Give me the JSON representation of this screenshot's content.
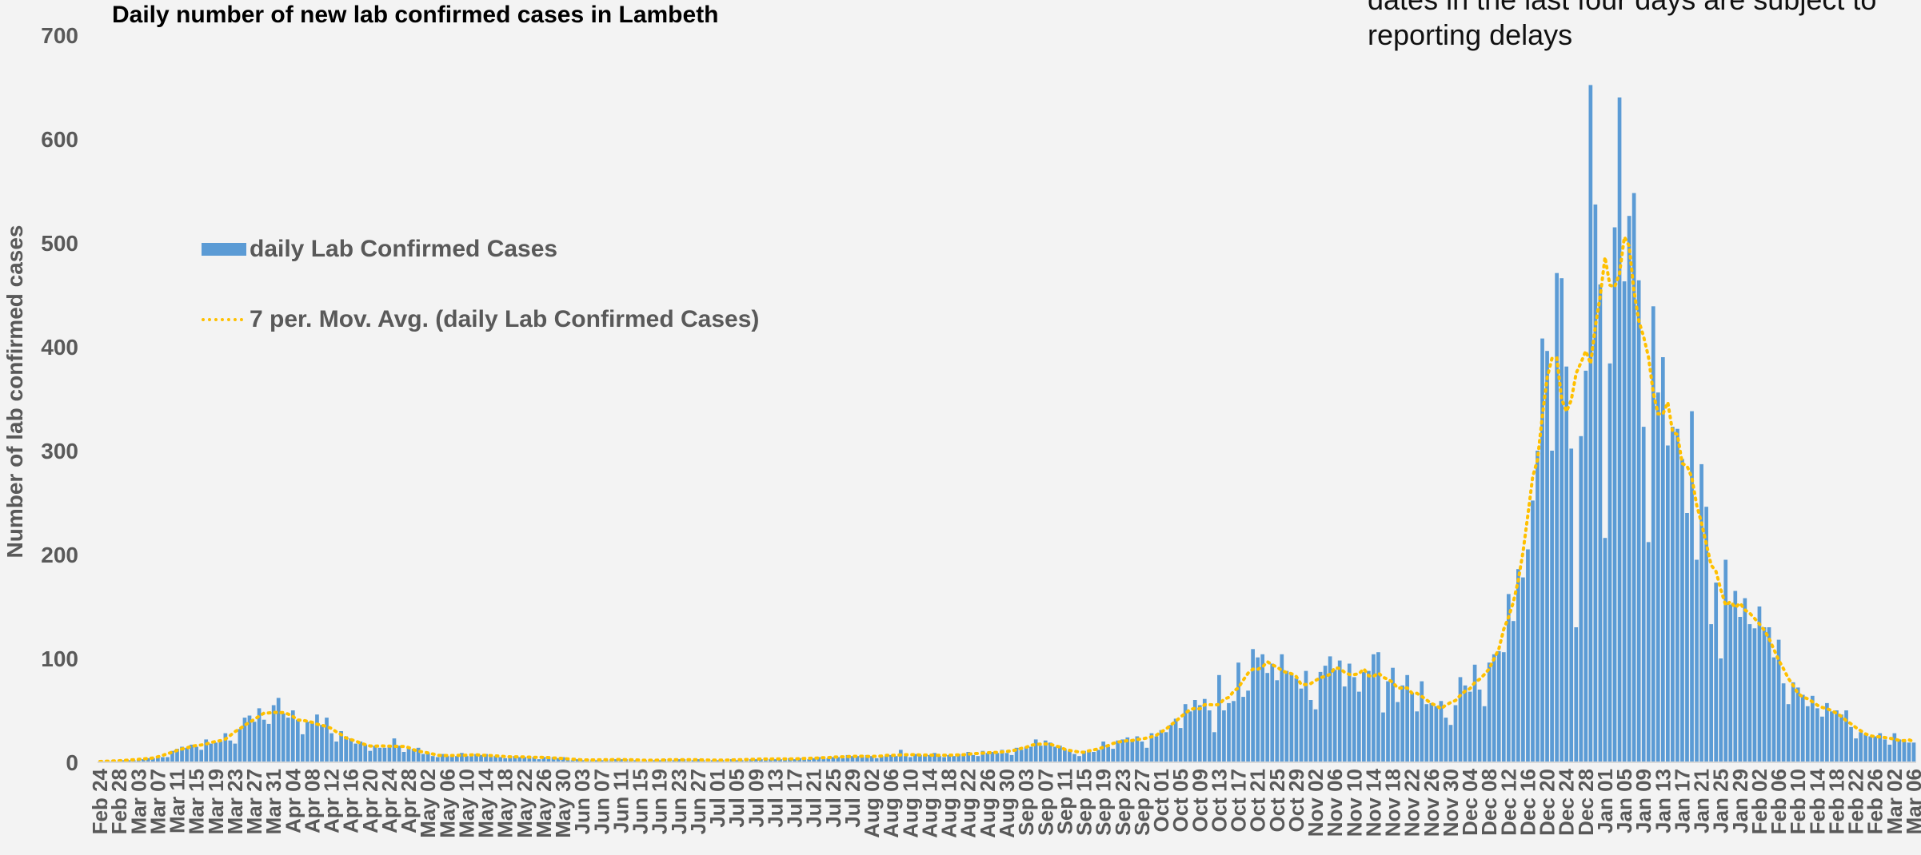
{
  "chart_data": {
    "type": "bar",
    "title": "Daily number of new lab confirmed cases in Lambeth",
    "note": "dates in the last four days are subject to reporting delays",
    "xlabel": "",
    "ylabel": "Number of lab confirmed cases",
    "ylim": [
      0,
      700
    ],
    "yticks": [
      0,
      100,
      200,
      300,
      400,
      500,
      600,
      700
    ],
    "grid": false,
    "legend_position": "upper-left",
    "start_date": "2020-02-24",
    "xtick_every_days": 4,
    "colors": {
      "bars": "#5b9bd5",
      "moving_average": "#ffc000",
      "axis_text": "#595959"
    },
    "series": [
      {
        "name": "daily Lab Confirmed Cases",
        "type": "bar",
        "anchors": [
          [
            "2020-02-24",
            0
          ],
          [
            "2020-03-01",
            2
          ],
          [
            "2020-03-08",
            5
          ],
          [
            "2020-03-12",
            11
          ],
          [
            "2020-03-16",
            13
          ],
          [
            "2020-03-20",
            22
          ],
          [
            "2020-03-24",
            29
          ],
          [
            "2020-03-28",
            36
          ],
          [
            "2020-04-01",
            45
          ],
          [
            "2020-04-05",
            40
          ],
          [
            "2020-04-09",
            34
          ],
          [
            "2020-04-13",
            24
          ],
          [
            "2020-04-17",
            18
          ],
          [
            "2020-04-21",
            15
          ],
          [
            "2020-04-25",
            14
          ],
          [
            "2020-04-29",
            11
          ],
          [
            "2020-05-03",
            7
          ],
          [
            "2020-05-10",
            6
          ],
          [
            "2020-05-18",
            6
          ],
          [
            "2020-05-25",
            4
          ],
          [
            "2020-06-05",
            2
          ],
          [
            "2020-06-20",
            2
          ],
          [
            "2020-07-01",
            2
          ],
          [
            "2020-07-15",
            3
          ],
          [
            "2020-07-25",
            4
          ],
          [
            "2020-08-01",
            6
          ],
          [
            "2020-08-08",
            5
          ],
          [
            "2020-08-15",
            7
          ],
          [
            "2020-08-22",
            6
          ],
          [
            "2020-08-28",
            9
          ],
          [
            "2020-09-04",
            14
          ],
          [
            "2020-09-10",
            12
          ],
          [
            "2020-09-14",
            8
          ],
          [
            "2020-09-18",
            11
          ],
          [
            "2020-09-22",
            16
          ],
          [
            "2020-09-26",
            18
          ],
          [
            "2020-09-30",
            25
          ],
          [
            "2020-10-04",
            35
          ],
          [
            "2020-10-08",
            45
          ],
          [
            "2020-10-12",
            40
          ],
          [
            "2020-10-16",
            60
          ],
          [
            "2020-10-20",
            80
          ],
          [
            "2020-10-24",
            70
          ],
          [
            "2020-10-28",
            76
          ],
          [
            "2020-11-01",
            68
          ],
          [
            "2020-11-05",
            70
          ],
          [
            "2020-11-09",
            68
          ],
          [
            "2020-11-13",
            82
          ],
          [
            "2020-11-17",
            74
          ],
          [
            "2020-11-21",
            60
          ],
          [
            "2020-11-25",
            55
          ],
          [
            "2020-11-29",
            50
          ],
          [
            "2020-12-03",
            58
          ],
          [
            "2020-12-07",
            62
          ],
          [
            "2020-12-10",
            95
          ],
          [
            "2020-12-13",
            140
          ],
          [
            "2020-12-16",
            180
          ],
          [
            "2020-12-19",
            260
          ],
          [
            "2020-12-21",
            350
          ],
          [
            "2020-12-23",
            380
          ],
          [
            "2020-12-25",
            300
          ],
          [
            "2020-12-27",
            355
          ],
          [
            "2020-12-29",
            450
          ],
          [
            "2020-12-30",
            580
          ],
          [
            "2021-01-01",
            420
          ],
          [
            "2021-01-03",
            440
          ],
          [
            "2021-01-05",
            540
          ],
          [
            "2021-01-07",
            480
          ],
          [
            "2021-01-09",
            410
          ],
          [
            "2021-01-12",
            330
          ],
          [
            "2021-01-16",
            260
          ],
          [
            "2021-01-20",
            215
          ],
          [
            "2021-01-24",
            170
          ],
          [
            "2021-01-28",
            140
          ],
          [
            "2021-02-01",
            115
          ],
          [
            "2021-02-05",
            90
          ],
          [
            "2021-02-09",
            70
          ],
          [
            "2021-02-13",
            55
          ],
          [
            "2021-02-17",
            40
          ],
          [
            "2021-02-21",
            32
          ],
          [
            "2021-02-25",
            25
          ],
          [
            "2021-03-01",
            20
          ],
          [
            "2021-03-06",
            13
          ]
        ],
        "highlights": [
          [
            "2020-03-31",
            55
          ],
          [
            "2020-04-09",
            46
          ],
          [
            "2020-04-25",
            23
          ],
          [
            "2020-08-08",
            12
          ],
          [
            "2020-09-07",
            21
          ],
          [
            "2020-10-13",
            84
          ],
          [
            "2020-10-17",
            96
          ],
          [
            "2020-10-26",
            104
          ],
          [
            "2020-11-04",
            93
          ],
          [
            "2020-11-09",
            95
          ],
          [
            "2020-11-15",
            106
          ],
          [
            "2020-11-19",
            58
          ],
          [
            "2020-12-02",
            82
          ],
          [
            "2020-12-14",
            186
          ],
          [
            "2020-12-18",
            300
          ],
          [
            "2020-12-20",
            396
          ],
          [
            "2020-12-22",
            471
          ],
          [
            "2020-12-23",
            466
          ],
          [
            "2020-12-24",
            381
          ],
          [
            "2020-12-26",
            130
          ],
          [
            "2020-12-28",
            377
          ],
          [
            "2020-12-29",
            652
          ],
          [
            "2020-12-30",
            537
          ],
          [
            "2020-12-31",
            460
          ],
          [
            "2021-01-01",
            216
          ],
          [
            "2021-01-02",
            384
          ],
          [
            "2021-01-04",
            640
          ],
          [
            "2021-01-05",
            463
          ],
          [
            "2021-01-06",
            526
          ],
          [
            "2021-01-07",
            548
          ],
          [
            "2021-01-08",
            464
          ],
          [
            "2021-01-09",
            323
          ],
          [
            "2021-01-10",
            212
          ],
          [
            "2021-01-11",
            439
          ],
          [
            "2021-01-13",
            390
          ],
          [
            "2021-01-15",
            323
          ],
          [
            "2021-01-16",
            321
          ],
          [
            "2021-01-18",
            240
          ],
          [
            "2021-01-20",
            195
          ],
          [
            "2021-01-23",
            133
          ],
          [
            "2021-01-25",
            100
          ],
          [
            "2021-01-26",
            195
          ],
          [
            "2021-02-01",
            129
          ],
          [
            "2021-02-09",
            77
          ]
        ]
      },
      {
        "name": "7 per. Mov. Avg. (daily Lab Confirmed Cases)",
        "type": "line",
        "style": "dotted",
        "window": 7
      }
    ]
  }
}
